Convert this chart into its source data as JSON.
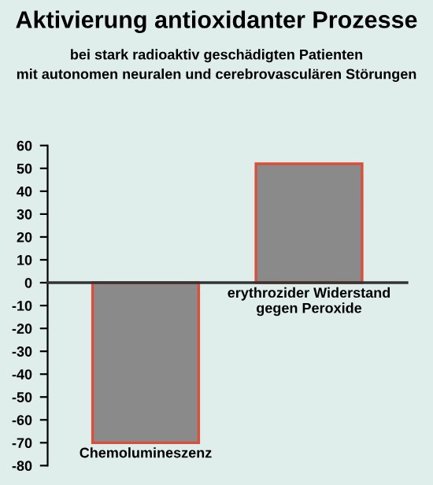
{
  "chart_data": {
    "type": "bar",
    "title": "Aktivierung antioxidanter Prozesse",
    "subtitle": "bei stark radioaktiv geschädigten Patienten\nmit autonomen neuralen und cerebrovasculären Störungen",
    "categories": [
      "Chemolumineszenz",
      "erythrozider Widerstand\ngegen Peroxide"
    ],
    "values": [
      -70,
      52
    ],
    "color": "#8a8a8a",
    "ylim": [
      -80,
      60
    ],
    "yticks": [
      -80,
      -70,
      -60,
      -50,
      -40,
      -30,
      -20,
      -10,
      0,
      10,
      20,
      30,
      40,
      50,
      60
    ]
  }
}
